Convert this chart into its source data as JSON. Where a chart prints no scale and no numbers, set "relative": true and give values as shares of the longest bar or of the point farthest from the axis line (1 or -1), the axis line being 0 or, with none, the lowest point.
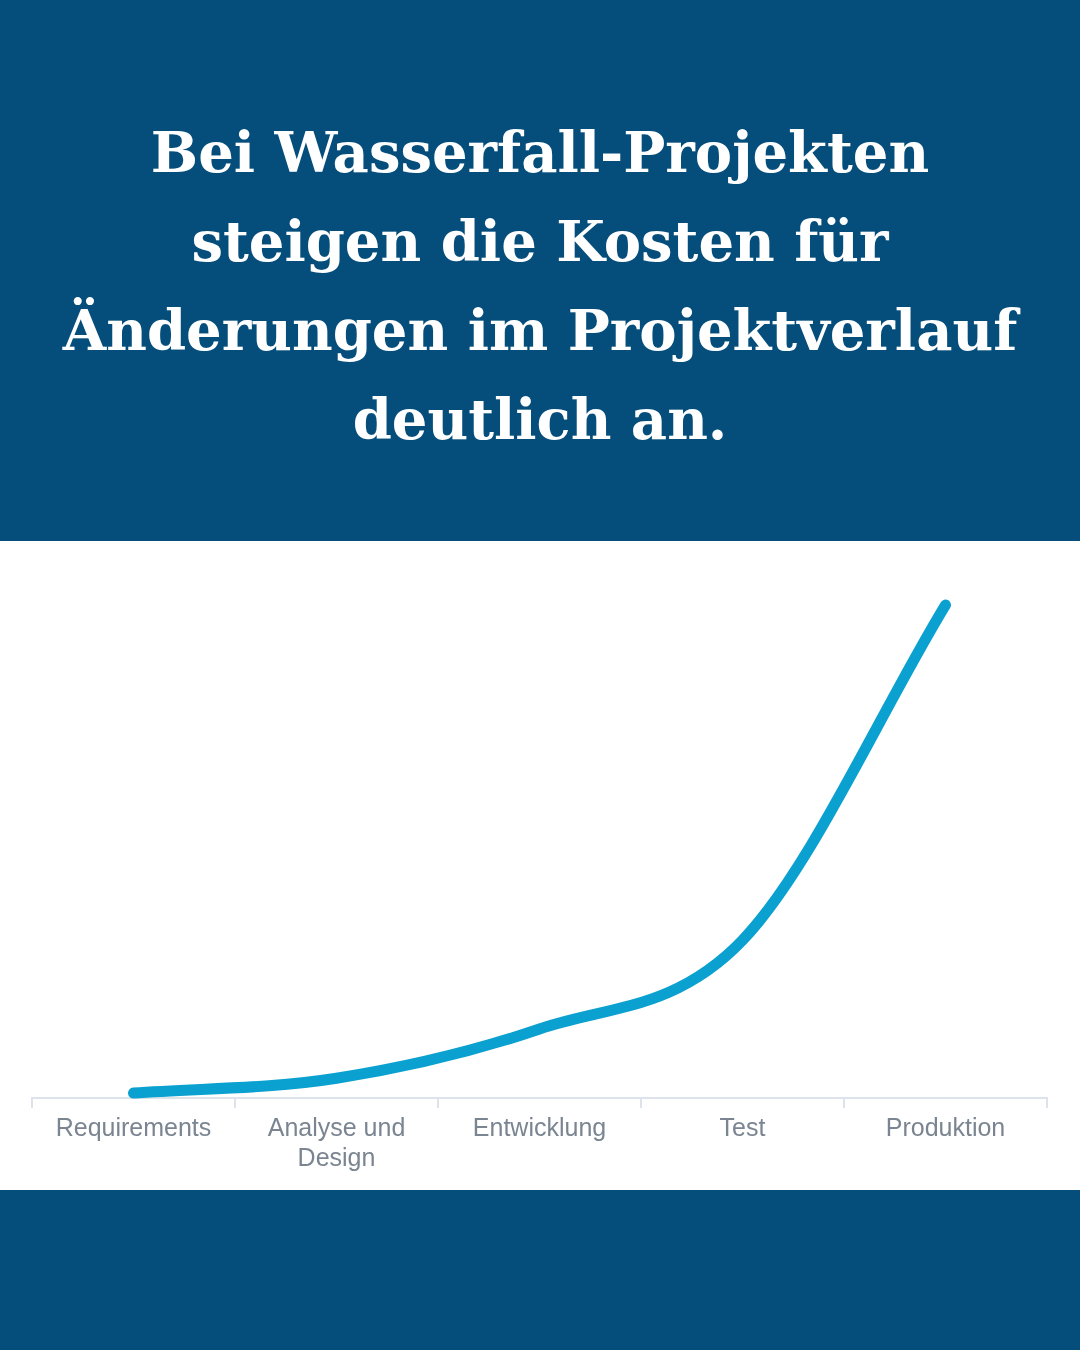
{
  "chart_data": {
    "type": "line",
    "title": "Bei Wasserfall-Projekten steigen die Kosten für Änderungen im Projektverlauf deutlich an.",
    "categories": [
      "Requirements",
      "Analyse und Design",
      "Entwicklung",
      "Test",
      "Produktion"
    ],
    "relative": true,
    "series": [
      {
        "color": "#0aa0cf",
        "values": [
          0.01,
          0.04,
          0.14,
          0.32,
          1
        ]
      }
    ],
    "legend": false,
    "grid": false
  }
}
